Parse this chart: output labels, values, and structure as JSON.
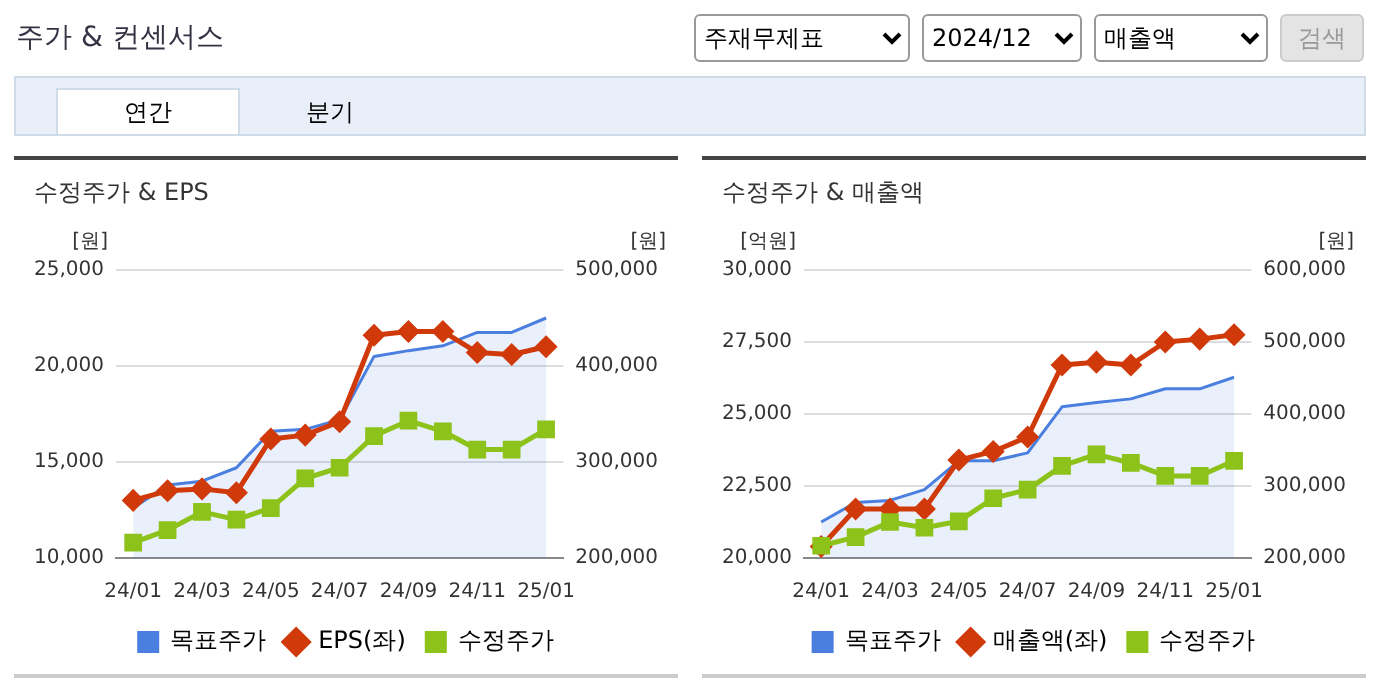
{
  "chart_data": [
    {
      "type": "other",
      "title": "주가 & 컨센서스",
      "annotations": [
        "주재무제표",
        "2024/12",
        "매출액",
        "검색",
        "연간",
        "분기"
      ]
    },
    {
      "type": "line",
      "title": "수정주가 & EPS",
      "ylabel": "[원]",
      "y2label": "[원]",
      "categories": [
        "24/01",
        null,
        "24/03",
        null,
        "24/05",
        null,
        "24/07",
        null,
        "24/09",
        null,
        "24/11",
        null,
        "25/01"
      ],
      "ylim": [
        10000,
        25000
      ],
      "yticks": [
        {
          "value": 10000,
          "label": "10,000"
        },
        {
          "value": 15000,
          "label": "15,000"
        },
        {
          "value": 20000,
          "label": "20,000"
        },
        {
          "value": 25000,
          "label": "25,000"
        }
      ],
      "y2lim": [
        200000,
        500000
      ],
      "y2ticks": [
        {
          "value": 200000,
          "label": "200,000"
        },
        {
          "value": 300000,
          "label": "300,000"
        },
        {
          "value": 400000,
          "label": "400,000"
        },
        {
          "value": 500000,
          "label": "500,000"
        }
      ],
      "grid": "y",
      "legend": "bottom",
      "series": [
        {
          "name": "목표주가",
          "type": "area",
          "axis": "y2",
          "marker": "none",
          "color": "#4a7fe0",
          "values": [
            252000,
            276000,
            280000,
            294000,
            332000,
            334000,
            344000,
            410000,
            416000,
            421000,
            435000,
            435000,
            450000
          ]
        },
        {
          "name": "EPS(좌)",
          "type": "line",
          "marker": "diamond",
          "color": "#d03a0a",
          "values": [
            13000,
            13500,
            13600,
            13400,
            16200,
            16400,
            17100,
            21600,
            21800,
            21800,
            20700,
            20600,
            21000
          ]
        },
        {
          "name": "수정주가",
          "type": "line",
          "axis": "y2",
          "marker": "square",
          "color": "#8cc21a",
          "values": [
            216000,
            229000,
            248000,
            240000,
            252000,
            283000,
            294000,
            327000,
            343000,
            332000,
            313000,
            313000,
            334000
          ]
        }
      ]
    },
    {
      "type": "line",
      "title": "수정주가 & 매출액",
      "ylabel": "[억원]",
      "y2label": "[원]",
      "categories": [
        "24/01",
        null,
        "24/03",
        null,
        "24/05",
        null,
        "24/07",
        null,
        "24/09",
        null,
        "24/11",
        null,
        "25/01"
      ],
      "ylim": [
        20000,
        30000
      ],
      "yticks": [
        {
          "value": 20000,
          "label": "20,000"
        },
        {
          "value": 22500,
          "label": "22,500"
        },
        {
          "value": 25000,
          "label": "25,000"
        },
        {
          "value": 27500,
          "label": "27,500"
        },
        {
          "value": 30000,
          "label": "30,000"
        }
      ],
      "y2lim": [
        200000,
        600000
      ],
      "y2ticks": [
        {
          "value": 200000,
          "label": "200,000"
        },
        {
          "value": 300000,
          "label": "300,000"
        },
        {
          "value": 400000,
          "label": "400,000"
        },
        {
          "value": 500000,
          "label": "500,000"
        },
        {
          "value": 600000,
          "label": "600,000"
        }
      ],
      "grid": "y",
      "legend": "bottom",
      "series": [
        {
          "name": "목표주가",
          "type": "area",
          "axis": "y2",
          "marker": "none",
          "color": "#4a7fe0",
          "values": [
            250000,
            277000,
            280000,
            295000,
            335000,
            335000,
            346000,
            410000,
            416000,
            421000,
            435000,
            435000,
            451000
          ]
        },
        {
          "name": "매출액(좌)",
          "type": "line",
          "marker": "diamond",
          "color": "#d03a0a",
          "values": [
            20400,
            21700,
            21700,
            21700,
            23400,
            23700,
            24200,
            26700,
            26800,
            26700,
            27500,
            27600,
            27750
          ]
        },
        {
          "name": "수정주가",
          "type": "line",
          "axis": "y2",
          "marker": "square",
          "color": "#8cc21a",
          "values": [
            217000,
            229000,
            250000,
            242000,
            251000,
            283000,
            295000,
            328000,
            344000,
            332000,
            314000,
            314000,
            335000
          ]
        }
      ]
    }
  ]
}
